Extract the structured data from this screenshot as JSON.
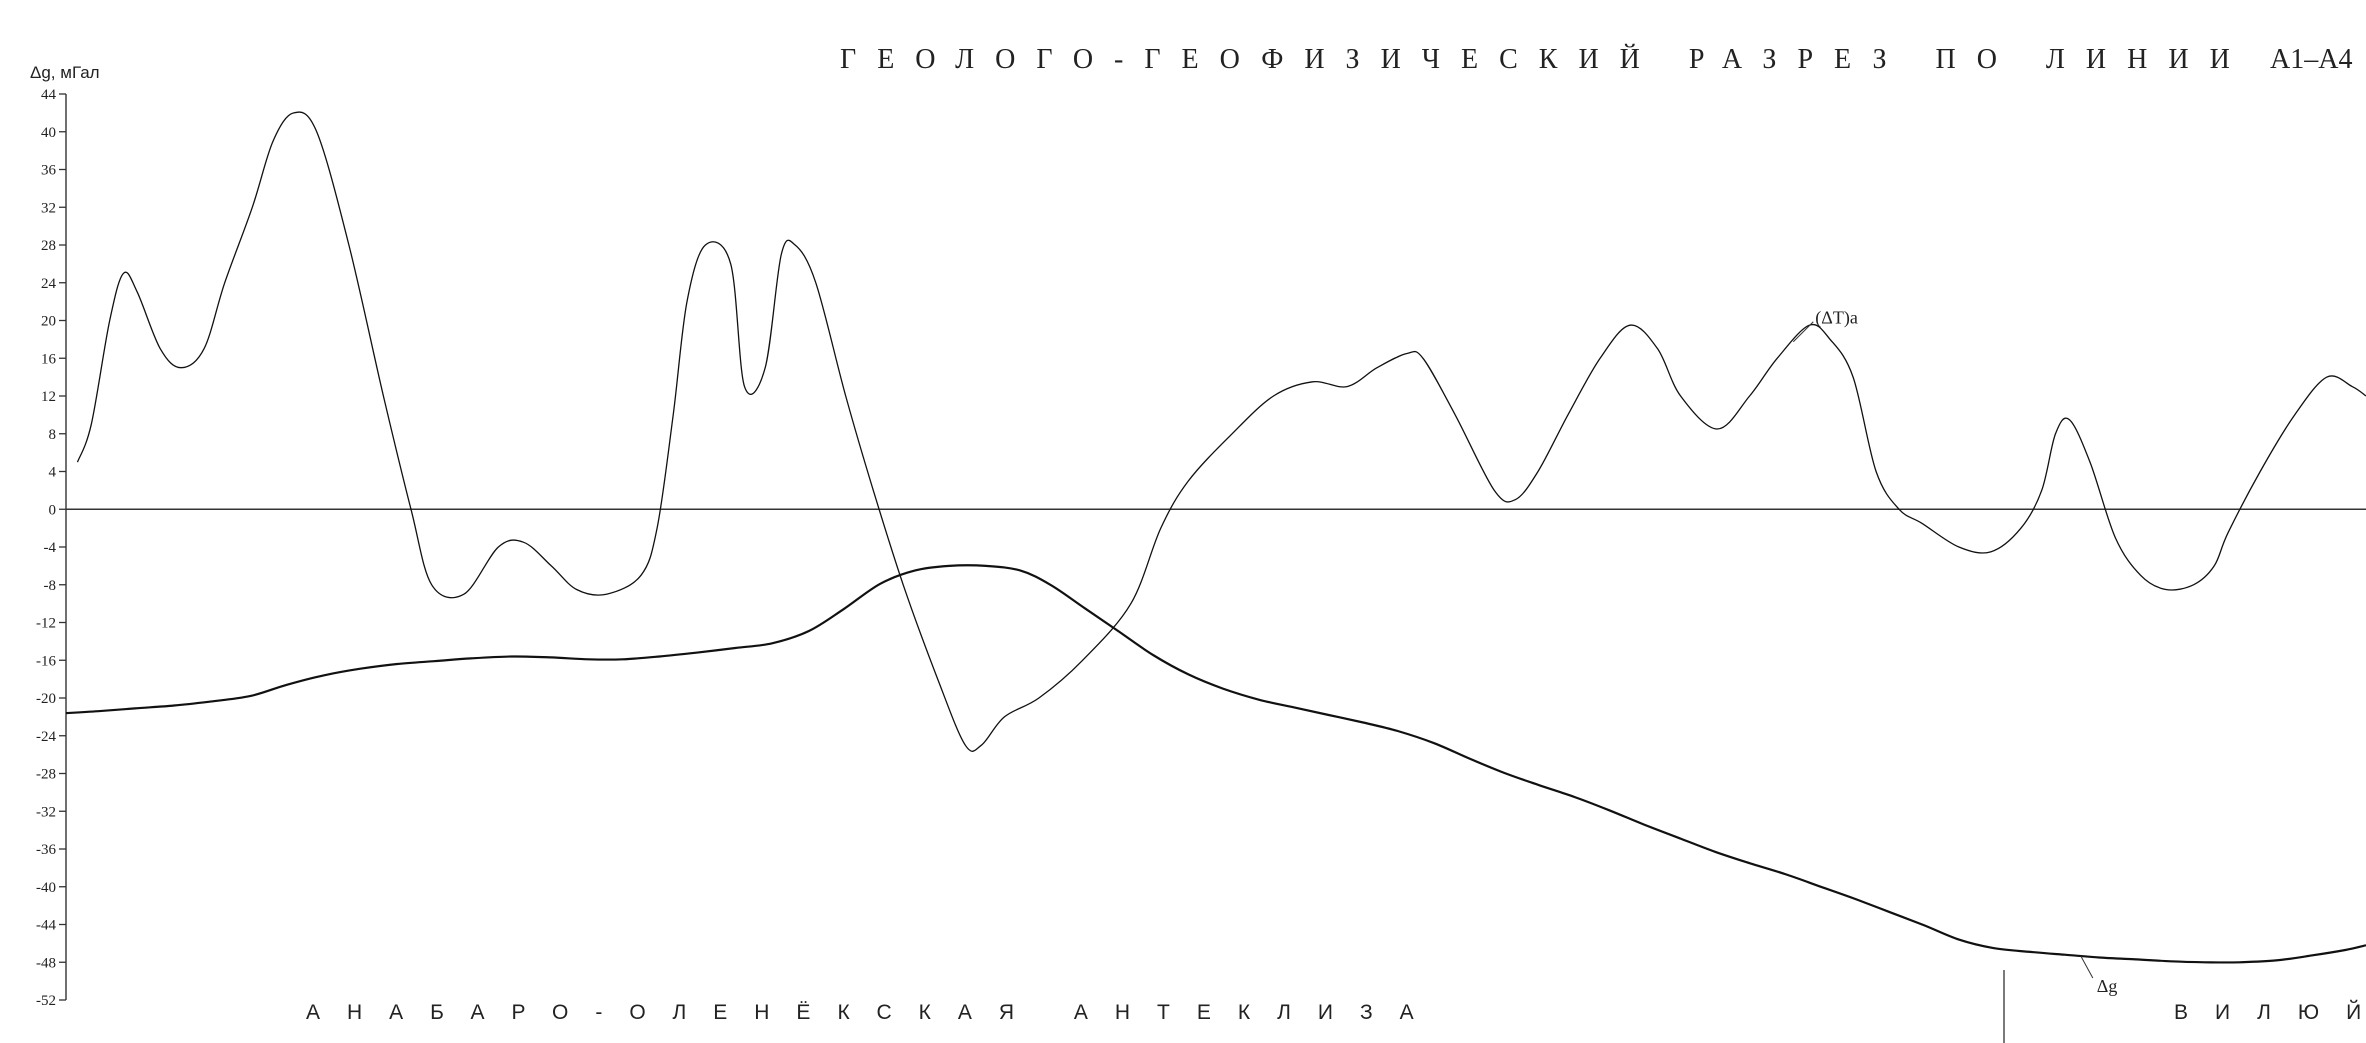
{
  "chart_data": {
    "type": "line",
    "title_main": "ГЕОЛОГО-ГЕОФИЗИЧЕСКИЙ РАЗРЕЗ ПО ЛИНИИ",
    "title_suffix": "А1–А4",
    "ylabel": "Δg, мГал",
    "ylim": [
      -52,
      44
    ],
    "yticks": [
      44,
      40,
      36,
      32,
      28,
      24,
      20,
      16,
      12,
      8,
      4,
      0,
      -4,
      -8,
      -12,
      -16,
      -20,
      -24,
      -28,
      -32,
      -36,
      -40,
      -44,
      -48,
      -52
    ],
    "xlim": [
      0,
      100
    ],
    "regions": [
      "АНАБАРО-ОЛЕНЁКСКАЯ АНТЕКЛИЗА",
      "ВИЛЮЙ"
    ],
    "series": [
      {
        "name": "(ΔT)a",
        "label_x": 75.1,
        "points": [
          [
            0.5,
            5
          ],
          [
            1.1,
            9
          ],
          [
            1.9,
            20
          ],
          [
            2.5,
            25
          ],
          [
            3.1,
            23
          ],
          [
            4.1,
            17
          ],
          [
            5.0,
            15
          ],
          [
            6.0,
            17
          ],
          [
            6.9,
            24
          ],
          [
            8.1,
            32
          ],
          [
            9.0,
            39
          ],
          [
            9.9,
            42
          ],
          [
            10.9,
            40
          ],
          [
            12.3,
            28
          ],
          [
            13.8,
            12
          ],
          [
            15.0,
            0
          ],
          [
            15.9,
            -8
          ],
          [
            17.3,
            -9
          ],
          [
            18.8,
            -4
          ],
          [
            19.9,
            -3.5
          ],
          [
            21.1,
            -6
          ],
          [
            22.2,
            -8.5
          ],
          [
            23.5,
            -9
          ],
          [
            25.0,
            -7
          ],
          [
            25.7,
            -2
          ],
          [
            26.4,
            10
          ],
          [
            27.0,
            22
          ],
          [
            27.8,
            28
          ],
          [
            28.9,
            26
          ],
          [
            29.5,
            13
          ],
          [
            30.4,
            15
          ],
          [
            31.1,
            27
          ],
          [
            31.7,
            28
          ],
          [
            32.6,
            24
          ],
          [
            33.9,
            12
          ],
          [
            35.1,
            2
          ],
          [
            36.4,
            -8
          ],
          [
            37.9,
            -18
          ],
          [
            39.1,
            -25
          ],
          [
            39.8,
            -25
          ],
          [
            40.8,
            -22
          ],
          [
            42.3,
            -20
          ],
          [
            44.2,
            -16
          ],
          [
            46.3,
            -10
          ],
          [
            47.6,
            -2
          ],
          [
            48.8,
            3
          ],
          [
            50.7,
            8
          ],
          [
            52.5,
            12
          ],
          [
            54.2,
            13.5
          ],
          [
            55.7,
            13
          ],
          [
            57.0,
            15
          ],
          [
            58.3,
            16.5
          ],
          [
            59.0,
            16
          ],
          [
            60.4,
            10
          ],
          [
            62.1,
            2
          ],
          [
            63.0,
            1
          ],
          [
            64.0,
            4
          ],
          [
            65.3,
            10
          ],
          [
            66.7,
            16
          ],
          [
            68.0,
            19.5
          ],
          [
            69.2,
            17
          ],
          [
            70.2,
            12
          ],
          [
            71.8,
            8.5
          ],
          [
            73.2,
            12
          ],
          [
            74.4,
            16
          ],
          [
            75.8,
            19.5
          ],
          [
            76.7,
            18
          ],
          [
            77.7,
            14
          ],
          [
            78.7,
            4
          ],
          [
            79.7,
            0
          ],
          [
            80.7,
            -1.5
          ],
          [
            82.3,
            -4
          ],
          [
            83.7,
            -4.5
          ],
          [
            85.0,
            -2
          ],
          [
            85.9,
            2
          ],
          [
            86.5,
            8
          ],
          [
            87.1,
            9.5
          ],
          [
            88.0,
            5
          ],
          [
            89.1,
            -3
          ],
          [
            90.2,
            -7
          ],
          [
            91.3,
            -8.5
          ],
          [
            92.5,
            -8
          ],
          [
            93.4,
            -6
          ],
          [
            94.0,
            -2.5
          ],
          [
            95.4,
            4
          ],
          [
            96.9,
            10
          ],
          [
            98.3,
            14
          ],
          [
            99.4,
            13
          ],
          [
            100,
            12
          ]
        ]
      },
      {
        "name": "Δg",
        "label_x": 87.6,
        "points": [
          [
            0,
            -21.6
          ],
          [
            1.4,
            -21.4
          ],
          [
            3.0,
            -21.1
          ],
          [
            4.7,
            -20.8
          ],
          [
            6.2,
            -20.4
          ],
          [
            8.0,
            -19.8
          ],
          [
            9.6,
            -18.6
          ],
          [
            11.2,
            -17.6
          ],
          [
            12.8,
            -16.9
          ],
          [
            14.4,
            -16.4
          ],
          [
            16.0,
            -16.1
          ],
          [
            17.6,
            -15.8
          ],
          [
            19.4,
            -15.6
          ],
          [
            21.1,
            -15.7
          ],
          [
            22.7,
            -15.9
          ],
          [
            24.2,
            -15.9
          ],
          [
            25.8,
            -15.6
          ],
          [
            27.4,
            -15.2
          ],
          [
            29.1,
            -14.7
          ],
          [
            30.7,
            -14.2
          ],
          [
            32.3,
            -12.9
          ],
          [
            33.8,
            -10.6
          ],
          [
            35.4,
            -7.9
          ],
          [
            36.9,
            -6.5
          ],
          [
            38.4,
            -6.0
          ],
          [
            40.0,
            -6.0
          ],
          [
            41.5,
            -6.5
          ],
          [
            42.8,
            -8.0
          ],
          [
            44.3,
            -10.5
          ],
          [
            45.8,
            -13.0
          ],
          [
            47.3,
            -15.5
          ],
          [
            48.8,
            -17.5
          ],
          [
            50.3,
            -19.0
          ],
          [
            51.9,
            -20.2
          ],
          [
            53.4,
            -21.0
          ],
          [
            54.9,
            -21.8
          ],
          [
            56.4,
            -22.6
          ],
          [
            57.9,
            -23.5
          ],
          [
            59.5,
            -24.8
          ],
          [
            61.0,
            -26.4
          ],
          [
            62.5,
            -27.9
          ],
          [
            64.0,
            -29.2
          ],
          [
            65.6,
            -30.5
          ],
          [
            67.1,
            -31.9
          ],
          [
            68.6,
            -33.4
          ],
          [
            70.2,
            -34.9
          ],
          [
            71.7,
            -36.3
          ],
          [
            73.2,
            -37.5
          ],
          [
            74.8,
            -38.7
          ],
          [
            76.3,
            -40.0
          ],
          [
            77.8,
            -41.3
          ],
          [
            79.3,
            -42.7
          ],
          [
            80.8,
            -44.1
          ],
          [
            82.3,
            -45.6
          ],
          [
            83.8,
            -46.5
          ],
          [
            85.4,
            -46.9
          ],
          [
            86.9,
            -47.2
          ],
          [
            88.4,
            -47.5
          ],
          [
            90.0,
            -47.7
          ],
          [
            91.5,
            -47.9
          ],
          [
            93.0,
            -48.0
          ],
          [
            94.5,
            -48.0
          ],
          [
            96.1,
            -47.8
          ],
          [
            97.6,
            -47.3
          ],
          [
            99.1,
            -46.7
          ],
          [
            100,
            -46.2
          ]
        ]
      }
    ]
  }
}
